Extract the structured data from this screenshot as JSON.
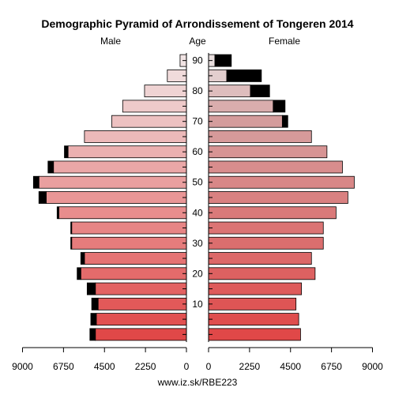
{
  "chart_data": {
    "type": "bar",
    "title": "Demographic Pyramid of Arrondissement of Tongeren 2014",
    "left_label": "Male",
    "center_label": "Age",
    "right_label": "Female",
    "footer": "www.iz.sk/RBE223",
    "xlim": [
      0,
      9000
    ],
    "x_ticks": [
      0,
      2250,
      4500,
      6750,
      9000
    ],
    "age_ticks": [
      10,
      20,
      30,
      40,
      50,
      60,
      70,
      80,
      90
    ],
    "age_groups": [
      "0-4",
      "5-9",
      "10-14",
      "15-19",
      "20-24",
      "25-29",
      "30-34",
      "35-39",
      "40-44",
      "45-49",
      "50-54",
      "55-59",
      "60-64",
      "65-69",
      "70-74",
      "75-79",
      "80-84",
      "85-89",
      "90+"
    ],
    "series": [
      {
        "name": "Male",
        "values": [
          5000,
          4950,
          4850,
          5000,
          5800,
          5600,
          6300,
          6300,
          7000,
          7700,
          8100,
          7300,
          6500,
          5600,
          4100,
          3500,
          2300,
          1050,
          350
        ],
        "excess": [
          300,
          300,
          350,
          450,
          200,
          200,
          50,
          50,
          100,
          400,
          300,
          300,
          200,
          0,
          0,
          0,
          0,
          0,
          0
        ]
      },
      {
        "name": "Female",
        "values": [
          5050,
          4950,
          4800,
          5100,
          5850,
          5650,
          6300,
          6300,
          7000,
          7650,
          8000,
          7350,
          6500,
          5650,
          4050,
          3550,
          2300,
          1000,
          350
        ],
        "excess": [
          0,
          0,
          0,
          0,
          0,
          0,
          0,
          0,
          0,
          0,
          0,
          0,
          0,
          0,
          300,
          650,
          1050,
          1900,
          900
        ]
      }
    ],
    "excess_color": "#000000"
  }
}
